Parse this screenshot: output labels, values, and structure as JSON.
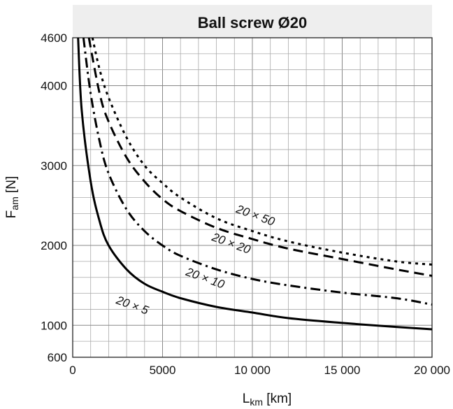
{
  "chart_data": {
    "type": "line",
    "title": "Ball screw Ø20",
    "xlabel": {
      "main": "L",
      "sub": "km",
      "unit": " [km]"
    },
    "ylabel": {
      "main": "F",
      "sub": "am",
      "unit": " [N]"
    },
    "xlim": [
      0,
      20000
    ],
    "ylim": [
      600,
      4600
    ],
    "grid": true,
    "x_tick_labels": [
      "0",
      "5000",
      "10 000",
      "15 000",
      "20 000"
    ],
    "y_tick_labels": [
      "600",
      "1000",
      "2000",
      "3000",
      "4000",
      "4600"
    ],
    "series": [
      {
        "name": "20 × 5",
        "style": "solid",
        "x": [
          300,
          500,
          1000,
          1500,
          2000,
          3000,
          4000,
          5000,
          6000,
          8000,
          10000,
          12000,
          15000,
          18000,
          20000
        ],
        "y": [
          4600,
          3700,
          2800,
          2300,
          2000,
          1700,
          1520,
          1420,
          1340,
          1230,
          1160,
          1090,
          1030,
          980,
          950
        ]
      },
      {
        "name": "20 × 10",
        "style": "dashdot",
        "x": [
          600,
          1000,
          1500,
          2000,
          3000,
          4000,
          5000,
          6000,
          8000,
          10000,
          12000,
          15000,
          18000,
          20000
        ],
        "y": [
          4600,
          3900,
          3300,
          2900,
          2450,
          2180,
          2000,
          1870,
          1700,
          1580,
          1500,
          1410,
          1340,
          1260
        ]
      },
      {
        "name": "20 × 20",
        "style": "dashed",
        "x": [
          900,
          1500,
          2000,
          3000,
          4000,
          5000,
          6000,
          8000,
          10000,
          12000,
          15000,
          18000,
          20000
        ],
        "y": [
          4600,
          3900,
          3550,
          3100,
          2800,
          2580,
          2430,
          2220,
          2080,
          1960,
          1830,
          1700,
          1620
        ]
      },
      {
        "name": "20 × 50",
        "style": "dotted",
        "x": [
          1100,
          1500,
          2000,
          3000,
          4000,
          5000,
          6000,
          8000,
          10000,
          12000,
          15000,
          18000,
          20000
        ],
        "y": [
          4600,
          4200,
          3850,
          3350,
          3000,
          2780,
          2600,
          2340,
          2180,
          2050,
          1910,
          1800,
          1760
        ]
      }
    ],
    "annotations": [
      "20 × 5",
      "20 × 10",
      "20 × 20",
      "20 × 50"
    ]
  }
}
